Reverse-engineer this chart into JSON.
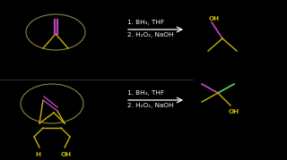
{
  "bg_color": "#000000",
  "text_color": "#ffffff",
  "reaction1_text1": "1. BH₃, THF",
  "reaction1_text2": "2. H₂O₂, NaOH",
  "reaction2_text1": "1. BH₃, THF",
  "reaction2_text2": "2. H₂O₂, NaOH",
  "yellow": "#c8b400",
  "purple": "#bb44bb",
  "green": "#55cc55",
  "orange": "#dd6600",
  "font_size": 5.2
}
